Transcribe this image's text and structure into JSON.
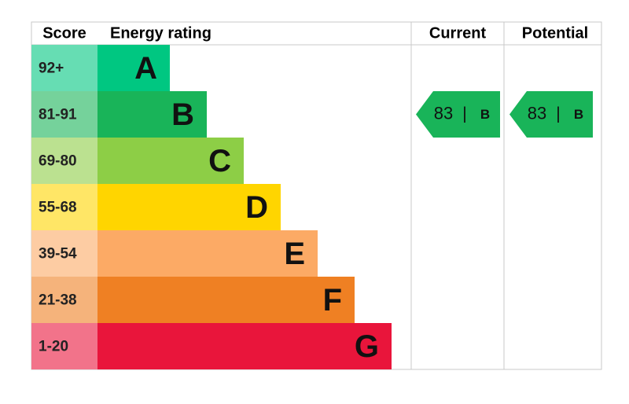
{
  "headers": {
    "score": "Score",
    "energy_rating": "Energy rating",
    "current": "Current",
    "potential": "Potential"
  },
  "bands": [
    {
      "score": "92+",
      "letter": "A",
      "color": "#00c781",
      "light": "#66ddb3"
    },
    {
      "score": "81-91",
      "letter": "B",
      "color": "#19b459",
      "light": "#75d29b"
    },
    {
      "score": "69-80",
      "letter": "C",
      "color": "#8dce46",
      "light": "#bbe190"
    },
    {
      "score": "55-68",
      "letter": "D",
      "color": "#ffd500",
      "light": "#ffe666"
    },
    {
      "score": "39-54",
      "letter": "E",
      "color": "#fcaa65",
      "light": "#fdcca3"
    },
    {
      "score": "21-38",
      "letter": "F",
      "color": "#ef8023",
      "light": "#f5b37b"
    },
    {
      "score": "1-20",
      "letter": "G",
      "color": "#e9153b",
      "light": "#f2738a"
    }
  ],
  "separator": "|",
  "current": {
    "value": 83,
    "rating": "B"
  },
  "potential": {
    "value": 83,
    "rating": "B"
  }
}
